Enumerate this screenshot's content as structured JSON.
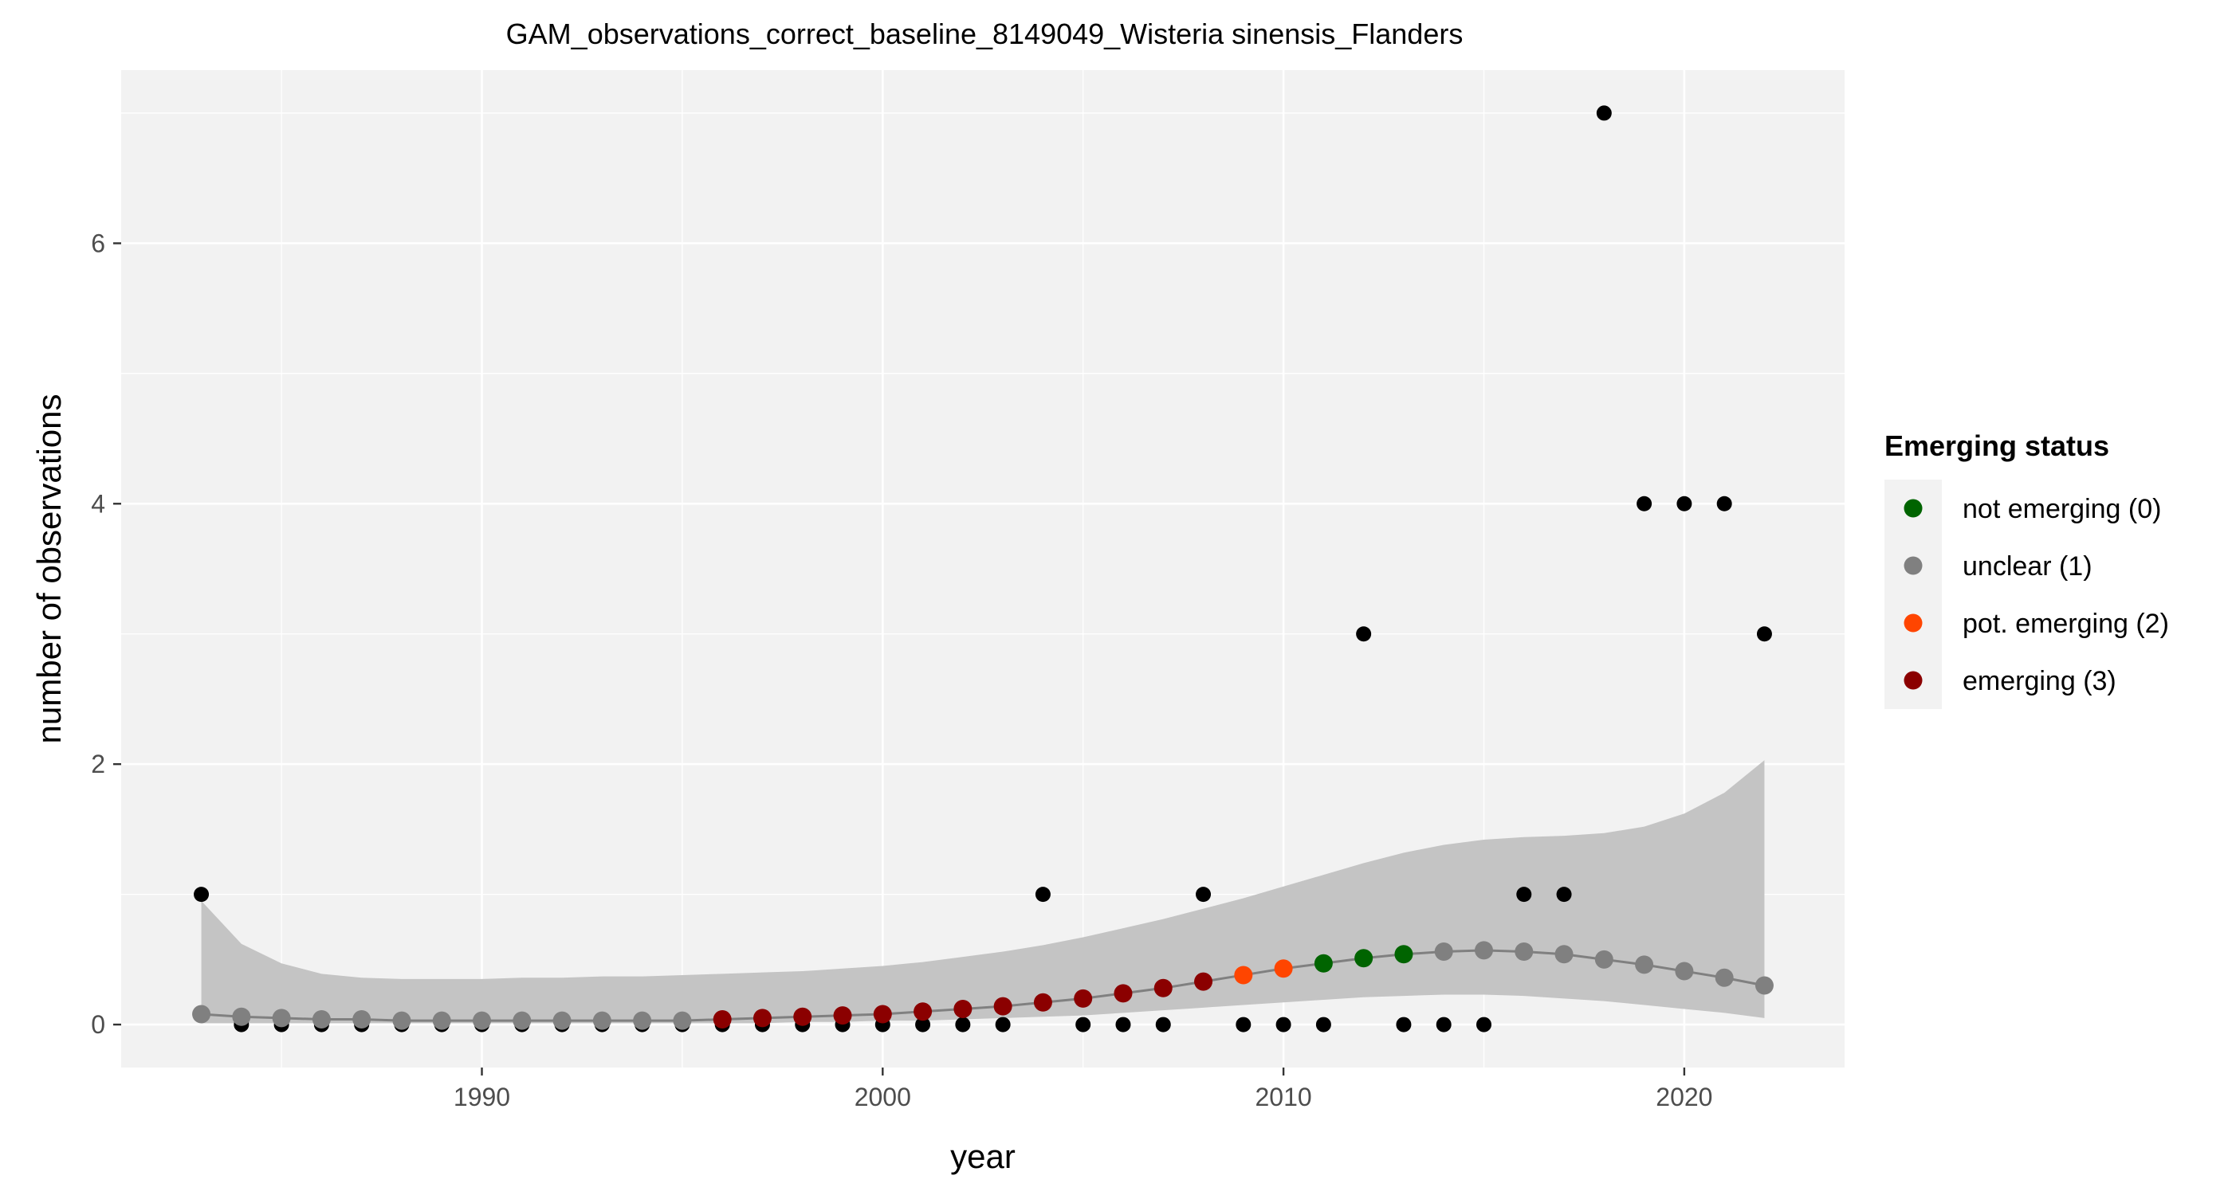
{
  "chart_data": {
    "type": "scatter",
    "title": "GAM_observations_correct_baseline_8149049_Wisteria sinensis_Flanders",
    "xlabel": "year",
    "ylabel": "number of observations",
    "xlim": [
      1981,
      2024
    ],
    "ylim": [
      -0.33,
      7.33
    ],
    "x_ticks": [
      1990,
      2000,
      2010,
      2020
    ],
    "y_ticks": [
      0,
      2,
      4,
      6
    ],
    "grid": true,
    "background": "#f2f2f2",
    "legend": {
      "title": "Emerging status",
      "position": "right",
      "entries": [
        {
          "label": "not emerging (0)",
          "color": "#006400"
        },
        {
          "label": "unclear (1)",
          "color": "#808080"
        },
        {
          "label": "pot. emerging (2)",
          "color": "#ff4500"
        },
        {
          "label": "emerging (3)",
          "color": "#8b0000"
        }
      ]
    },
    "observations": {
      "color": "#000000",
      "x": [
        1983,
        1984,
        1985,
        1986,
        1987,
        1988,
        1989,
        1990,
        1991,
        1992,
        1993,
        1994,
        1995,
        1996,
        1997,
        1998,
        1999,
        2000,
        2001,
        2002,
        2003,
        2004,
        2005,
        2006,
        2007,
        2008,
        2009,
        2010,
        2011,
        2012,
        2013,
        2014,
        2015,
        2016,
        2017,
        2018,
        2019,
        2020,
        2021,
        2022
      ],
      "y": [
        1,
        0,
        0,
        0,
        0,
        0,
        0,
        0,
        0,
        0,
        0,
        0,
        0,
        0,
        0,
        0,
        0,
        0,
        0,
        0,
        0,
        1,
        0,
        0,
        0,
        1,
        0,
        0,
        0,
        3,
        0,
        0,
        0,
        1,
        1,
        7,
        4,
        4,
        4,
        3
      ]
    },
    "gam_fit": {
      "line_color": "#808080",
      "band_color": "#c4c4c4",
      "x": [
        1983,
        1984,
        1985,
        1986,
        1987,
        1988,
        1989,
        1990,
        1991,
        1992,
        1993,
        1994,
        1995,
        1996,
        1997,
        1998,
        1999,
        2000,
        2001,
        2002,
        2003,
        2004,
        2005,
        2006,
        2007,
        2008,
        2009,
        2010,
        2011,
        2012,
        2013,
        2014,
        2015,
        2016,
        2017,
        2018,
        2019,
        2020,
        2021,
        2022
      ],
      "fit": [
        0.08,
        0.06,
        0.05,
        0.04,
        0.04,
        0.03,
        0.03,
        0.03,
        0.03,
        0.03,
        0.03,
        0.03,
        0.03,
        0.04,
        0.05,
        0.06,
        0.07,
        0.08,
        0.1,
        0.12,
        0.14,
        0.17,
        0.2,
        0.24,
        0.28,
        0.33,
        0.38,
        0.43,
        0.47,
        0.51,
        0.54,
        0.56,
        0.57,
        0.56,
        0.54,
        0.5,
        0.46,
        0.41,
        0.36,
        0.3
      ],
      "upper": [
        0.95,
        0.62,
        0.47,
        0.39,
        0.36,
        0.35,
        0.35,
        0.35,
        0.36,
        0.36,
        0.37,
        0.37,
        0.38,
        0.39,
        0.4,
        0.41,
        0.43,
        0.45,
        0.48,
        0.52,
        0.56,
        0.61,
        0.67,
        0.74,
        0.81,
        0.89,
        0.97,
        1.06,
        1.15,
        1.24,
        1.32,
        1.38,
        1.42,
        1.44,
        1.45,
        1.47,
        1.52,
        1.62,
        1.78,
        2.03
      ],
      "lower": [
        0.01,
        0.01,
        0.01,
        0.01,
        0.01,
        0.01,
        0.01,
        0.01,
        0.01,
        0.01,
        0.01,
        0.01,
        0.01,
        0.01,
        0.01,
        0.02,
        0.02,
        0.03,
        0.03,
        0.04,
        0.05,
        0.06,
        0.07,
        0.09,
        0.11,
        0.13,
        0.15,
        0.17,
        0.19,
        0.21,
        0.22,
        0.23,
        0.23,
        0.22,
        0.2,
        0.18,
        0.15,
        0.12,
        0.09,
        0.05
      ],
      "status": [
        1,
        1,
        1,
        1,
        1,
        1,
        1,
        1,
        1,
        1,
        1,
        1,
        1,
        3,
        3,
        3,
        3,
        3,
        3,
        3,
        3,
        3,
        3,
        3,
        3,
        3,
        2,
        2,
        0,
        0,
        0,
        1,
        1,
        1,
        1,
        1,
        1,
        1,
        1,
        1
      ]
    }
  }
}
